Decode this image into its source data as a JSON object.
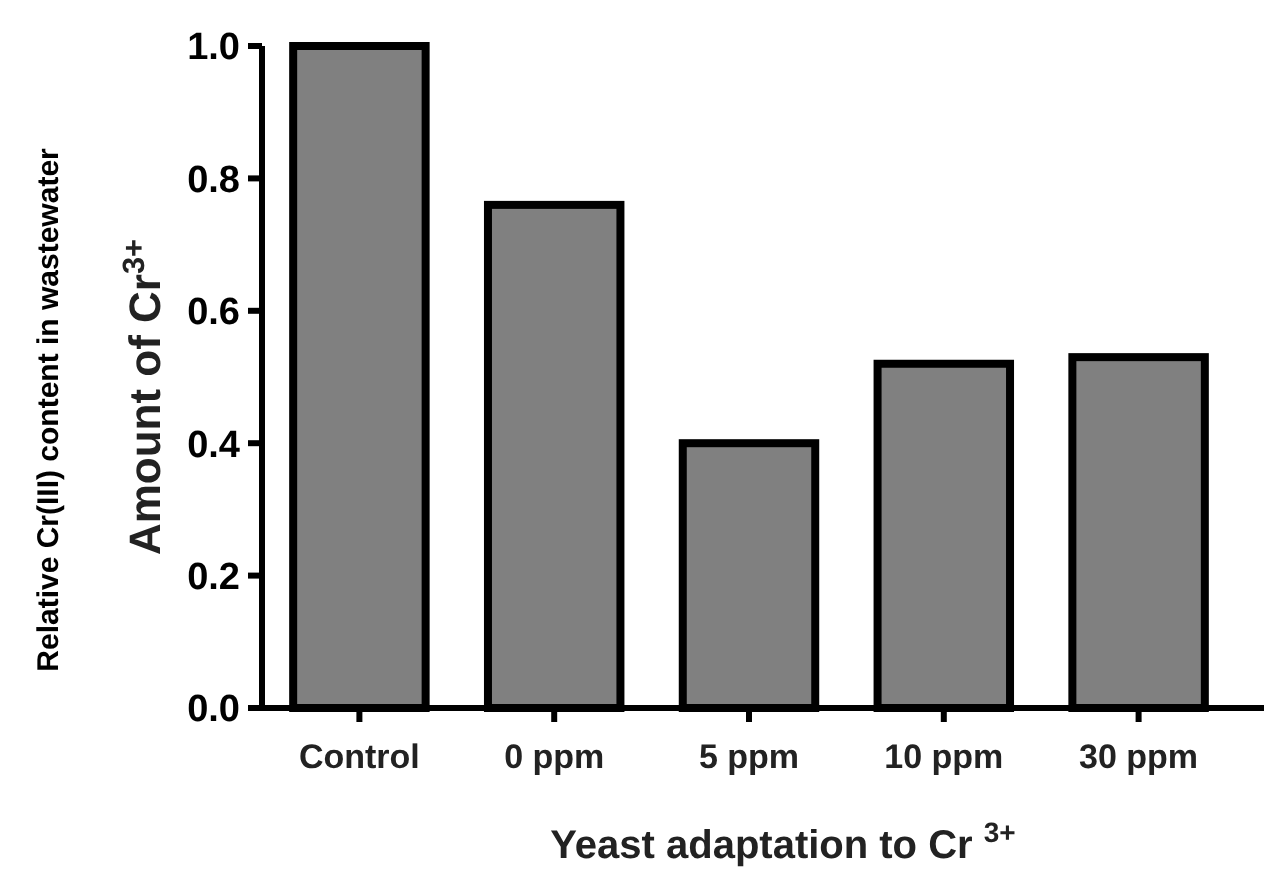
{
  "chart_data": {
    "type": "bar",
    "xlabel": "Yeast adaptation to Cr $^{3+}$",
    "ylabel": "Amount of Cr$^{3+}$",
    "annotations": [
      "Relative Cr(III) content in wastewater"
    ],
    "categories": [
      "Control",
      "0 ppm",
      "5 ppm",
      "10 ppm",
      "30 ppm"
    ],
    "values": [
      1.0,
      0.76,
      0.4,
      0.52,
      0.53
    ],
    "color": "#808080",
    "ylim": [
      0,
      1.0
    ],
    "yticks": [
      {
        "value": 0,
        "label": "0.0"
      },
      {
        "value": 0.2,
        "label": "0.2"
      },
      {
        "value": 0.4,
        "label": "0.4"
      },
      {
        "value": 0.6,
        "label": "0.6"
      },
      {
        "value": 0.8,
        "label": "0.8"
      },
      {
        "value": 1.0,
        "label": "1.0"
      }
    ]
  }
}
